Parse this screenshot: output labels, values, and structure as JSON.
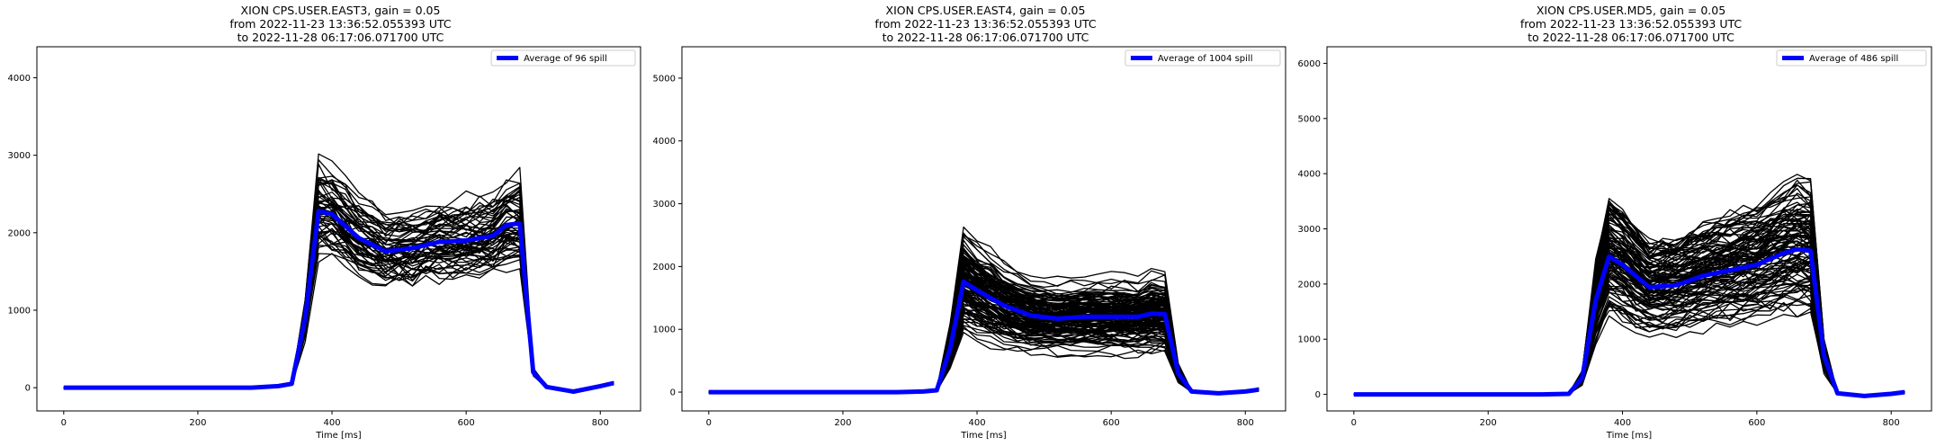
{
  "chart_data": [
    {
      "type": "line",
      "title": [
        "XION CPS.USER.EAST3, gain = 0.05",
        "from 2022-11-23 13:36:52.055393 UTC",
        "to 2022-11-28 06:17:06.071700 UTC"
      ],
      "xlabel": "Time [ms]",
      "ylabel": "",
      "xlim": [
        -40,
        860
      ],
      "ylim": [
        -300,
        4400
      ],
      "xticks": [
        0,
        200,
        400,
        600,
        800
      ],
      "yticks": [
        0,
        1000,
        2000,
        3000,
        4000
      ],
      "legend": {
        "position": "top-right",
        "label": "Average of 96 spill",
        "color": "#0000ff"
      },
      "series": [
        {
          "color": "#0000ff",
          "x": [
            0,
            40,
            80,
            120,
            160,
            200,
            240,
            280,
            320,
            340,
            360,
            380,
            400,
            440,
            480,
            520,
            560,
            600,
            640,
            660,
            680,
            700,
            720,
            760,
            800,
            820
          ],
          "values": [
            0,
            0,
            0,
            0,
            0,
            0,
            0,
            0,
            20,
            50,
            900,
            2280,
            2240,
            1930,
            1760,
            1800,
            1880,
            1900,
            1960,
            2100,
            2120,
            200,
            10,
            -50,
            20,
            60
          ]
        }
      ]
    },
    {
      "type": "line",
      "title": [
        "XION CPS.USER.EAST4, gain = 0.05",
        "from 2022-11-23 13:36:52.055393 UTC",
        "to 2022-11-28 06:17:06.071700 UTC"
      ],
      "xlabel": "Time [ms]",
      "ylabel": "",
      "xlim": [
        -40,
        860
      ],
      "ylim": [
        -300,
        5500
      ],
      "xticks": [
        0,
        200,
        400,
        600,
        800
      ],
      "yticks": [
        0,
        1000,
        2000,
        3000,
        4000,
        5000
      ],
      "legend": {
        "position": "top-right",
        "label": "Average of 1004 spill",
        "color": "#0000ff"
      },
      "series": [
        {
          "color": "#0000ff",
          "x": [
            0,
            40,
            80,
            120,
            160,
            200,
            240,
            280,
            320,
            340,
            360,
            380,
            400,
            440,
            480,
            520,
            560,
            600,
            640,
            660,
            680,
            700,
            720,
            760,
            800,
            820
          ],
          "values": [
            0,
            0,
            0,
            0,
            0,
            0,
            0,
            0,
            10,
            30,
            700,
            1760,
            1620,
            1380,
            1220,
            1170,
            1200,
            1200,
            1200,
            1250,
            1240,
            300,
            10,
            -20,
            10,
            40
          ]
        }
      ]
    },
    {
      "type": "line",
      "title": [
        "XION CPS.USER.MD5, gain = 0.05",
        "from 2022-11-23 13:36:52.055393 UTC",
        "to 2022-11-28 06:17:06.071700 UTC"
      ],
      "xlabel": "Time [ms]",
      "ylabel": "",
      "xlim": [
        -40,
        860
      ],
      "ylim": [
        -300,
        6300
      ],
      "xticks": [
        0,
        200,
        400,
        600,
        800
      ],
      "yticks": [
        0,
        1000,
        2000,
        3000,
        4000,
        5000,
        6000
      ],
      "legend": {
        "position": "top-right",
        "label": "Average of 486 spill",
        "color": "#0000ff"
      },
      "series": [
        {
          "color": "#0000ff",
          "x": [
            0,
            40,
            80,
            120,
            160,
            200,
            240,
            280,
            320,
            340,
            360,
            380,
            400,
            440,
            480,
            520,
            560,
            600,
            640,
            660,
            680,
            700,
            720,
            760,
            800,
            820
          ],
          "values": [
            0,
            0,
            0,
            0,
            0,
            0,
            0,
            0,
            10,
            300,
            1700,
            2500,
            2350,
            1940,
            1980,
            2150,
            2250,
            2350,
            2560,
            2630,
            2600,
            700,
            20,
            -30,
            10,
            40
          ]
        }
      ]
    }
  ],
  "style": {
    "average_color": "#0000ff",
    "individual_spill_color": "#000000"
  }
}
